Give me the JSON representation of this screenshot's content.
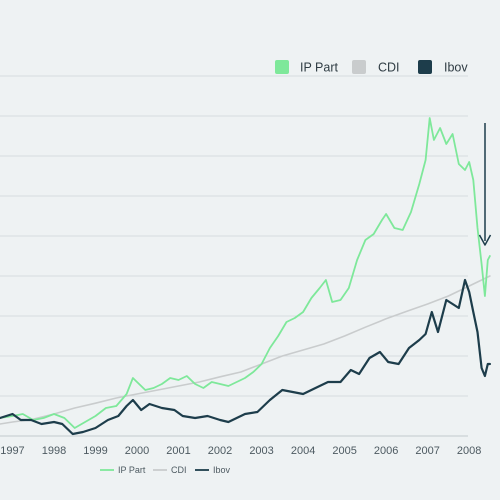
{
  "chart_data": {
    "type": "line",
    "title": "",
    "xlabel": "",
    "ylabel": "",
    "xlim": [
      1996.7,
      2008.55
    ],
    "ylim": [
      0,
      9
    ],
    "grid": "horizontal",
    "legend_position": "top-right",
    "x_ticks": [
      "1997",
      "1998",
      "1999",
      "2000",
      "2001",
      "2002",
      "2003",
      "2004",
      "2005",
      "2006",
      "2007",
      "2008"
    ],
    "series": [
      {
        "name": "IP Part",
        "color": "#7ee89a",
        "points": [
          [
            1996.7,
            0.45
          ],
          [
            1997.0,
            0.5
          ],
          [
            1997.25,
            0.55
          ],
          [
            1997.5,
            0.4
          ],
          [
            1997.75,
            0.45
          ],
          [
            1998.0,
            0.55
          ],
          [
            1998.25,
            0.45
          ],
          [
            1998.5,
            0.2
          ],
          [
            1998.75,
            0.35
          ],
          [
            1999.0,
            0.5
          ],
          [
            1999.25,
            0.7
          ],
          [
            1999.5,
            0.75
          ],
          [
            1999.75,
            1.05
          ],
          [
            1999.9,
            1.45
          ],
          [
            2000.0,
            1.35
          ],
          [
            2000.2,
            1.15
          ],
          [
            2000.4,
            1.2
          ],
          [
            2000.6,
            1.3
          ],
          [
            2000.8,
            1.45
          ],
          [
            2001.0,
            1.4
          ],
          [
            2001.2,
            1.5
          ],
          [
            2001.4,
            1.3
          ],
          [
            2001.6,
            1.2
          ],
          [
            2001.8,
            1.35
          ],
          [
            2002.0,
            1.3
          ],
          [
            2002.2,
            1.25
          ],
          [
            2002.4,
            1.35
          ],
          [
            2002.6,
            1.45
          ],
          [
            2002.8,
            1.6
          ],
          [
            2003.0,
            1.8
          ],
          [
            2003.2,
            2.2
          ],
          [
            2003.4,
            2.5
          ],
          [
            2003.6,
            2.85
          ],
          [
            2003.8,
            2.95
          ],
          [
            2004.0,
            3.1
          ],
          [
            2004.2,
            3.45
          ],
          [
            2004.4,
            3.7
          ],
          [
            2004.55,
            3.9
          ],
          [
            2004.7,
            3.35
          ],
          [
            2004.9,
            3.4
          ],
          [
            2005.1,
            3.7
          ],
          [
            2005.3,
            4.4
          ],
          [
            2005.5,
            4.9
          ],
          [
            2005.7,
            5.05
          ],
          [
            2005.9,
            5.4
          ],
          [
            2006.0,
            5.55
          ],
          [
            2006.2,
            5.2
          ],
          [
            2006.4,
            5.15
          ],
          [
            2006.6,
            5.6
          ],
          [
            2006.8,
            6.3
          ],
          [
            2006.95,
            6.9
          ],
          [
            2007.05,
            7.95
          ],
          [
            2007.15,
            7.4
          ],
          [
            2007.3,
            7.7
          ],
          [
            2007.45,
            7.3
          ],
          [
            2007.6,
            7.55
          ],
          [
            2007.75,
            6.8
          ],
          [
            2007.9,
            6.65
          ],
          [
            2008.0,
            6.85
          ],
          [
            2008.1,
            6.4
          ],
          [
            2008.2,
            5.2
          ],
          [
            2008.3,
            4.3
          ],
          [
            2008.38,
            3.5
          ],
          [
            2008.45,
            4.4
          ],
          [
            2008.5,
            4.5
          ]
        ]
      },
      {
        "name": "CDI",
        "color": "#c9cccd",
        "points": [
          [
            1996.7,
            0.3
          ],
          [
            1997.0,
            0.35
          ],
          [
            1997.5,
            0.42
          ],
          [
            1998.0,
            0.55
          ],
          [
            1998.5,
            0.7
          ],
          [
            1999.0,
            0.82
          ],
          [
            1999.5,
            0.95
          ],
          [
            2000.0,
            1.05
          ],
          [
            2000.5,
            1.15
          ],
          [
            2001.0,
            1.25
          ],
          [
            2001.5,
            1.35
          ],
          [
            2002.0,
            1.48
          ],
          [
            2002.5,
            1.6
          ],
          [
            2003.0,
            1.8
          ],
          [
            2003.5,
            2.0
          ],
          [
            2004.0,
            2.15
          ],
          [
            2004.5,
            2.3
          ],
          [
            2005.0,
            2.5
          ],
          [
            2005.5,
            2.72
          ],
          [
            2006.0,
            2.93
          ],
          [
            2006.5,
            3.12
          ],
          [
            2007.0,
            3.3
          ],
          [
            2007.5,
            3.5
          ],
          [
            2008.0,
            3.75
          ],
          [
            2008.5,
            4.0
          ]
        ]
      },
      {
        "name": "Ibov",
        "color": "#1d3d4b",
        "points": [
          [
            1996.7,
            0.45
          ],
          [
            1997.0,
            0.55
          ],
          [
            1997.2,
            0.4
          ],
          [
            1997.45,
            0.4
          ],
          [
            1997.7,
            0.3
          ],
          [
            1998.0,
            0.35
          ],
          [
            1998.2,
            0.3
          ],
          [
            1998.45,
            0.05
          ],
          [
            1998.7,
            0.1
          ],
          [
            1999.0,
            0.2
          ],
          [
            1999.3,
            0.4
          ],
          [
            1999.55,
            0.5
          ],
          [
            1999.75,
            0.75
          ],
          [
            1999.9,
            0.9
          ],
          [
            2000.1,
            0.65
          ],
          [
            2000.3,
            0.8
          ],
          [
            2000.6,
            0.7
          ],
          [
            2000.9,
            0.65
          ],
          [
            2001.1,
            0.5
          ],
          [
            2001.4,
            0.45
          ],
          [
            2001.7,
            0.5
          ],
          [
            2002.0,
            0.4
          ],
          [
            2002.2,
            0.35
          ],
          [
            2002.4,
            0.45
          ],
          [
            2002.6,
            0.55
          ],
          [
            2002.9,
            0.6
          ],
          [
            2003.2,
            0.9
          ],
          [
            2003.5,
            1.15
          ],
          [
            2003.75,
            1.1
          ],
          [
            2004.0,
            1.05
          ],
          [
            2004.3,
            1.2
          ],
          [
            2004.6,
            1.35
          ],
          [
            2004.9,
            1.35
          ],
          [
            2005.15,
            1.65
          ],
          [
            2005.35,
            1.55
          ],
          [
            2005.6,
            1.95
          ],
          [
            2005.85,
            2.1
          ],
          [
            2006.05,
            1.85
          ],
          [
            2006.3,
            1.8
          ],
          [
            2006.55,
            2.2
          ],
          [
            2006.8,
            2.4
          ],
          [
            2006.95,
            2.55
          ],
          [
            2007.1,
            3.1
          ],
          [
            2007.25,
            2.6
          ],
          [
            2007.45,
            3.4
          ],
          [
            2007.6,
            3.3
          ],
          [
            2007.75,
            3.2
          ],
          [
            2007.9,
            3.9
          ],
          [
            2008.0,
            3.6
          ],
          [
            2008.1,
            3.1
          ],
          [
            2008.2,
            2.6
          ],
          [
            2008.3,
            1.7
          ],
          [
            2008.38,
            1.5
          ],
          [
            2008.45,
            1.8
          ],
          [
            2008.5,
            1.8
          ]
        ]
      }
    ]
  },
  "legend_top": {
    "items": [
      {
        "label": "IP Part",
        "color": "#7ee89a"
      },
      {
        "label": "CDI",
        "color": "#c9cccd"
      },
      {
        "label": "Ibov",
        "color": "#1d3d4b"
      }
    ]
  },
  "legend_bottom": {
    "items": [
      {
        "label": "IP Part",
        "color": "#7ee89a"
      },
      {
        "label": "CDI",
        "color": "#c9cccd"
      },
      {
        "label": "Ibov",
        "color": "#1d3d4b"
      }
    ]
  },
  "annotations": {
    "arrow": {
      "direction": "down",
      "color": "#1d3d4b"
    }
  }
}
